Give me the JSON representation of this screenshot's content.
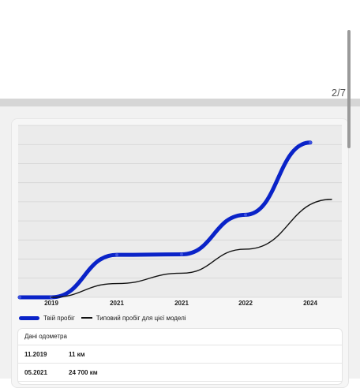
{
  "pager": {
    "text": "2/7"
  },
  "chart_data": {
    "type": "line",
    "x_tick_labels": [
      "2019",
      "2021",
      "2021",
      "2022",
      "2024"
    ],
    "series": [
      {
        "name": "Твій пробіг",
        "color": "#0a23c8",
        "points": [
          {
            "x": "2018",
            "y": 11
          },
          {
            "x": "11.2019",
            "y": 11
          },
          {
            "x": "05.2021",
            "y": 24700
          },
          {
            "x": "2021",
            "y": 25000
          },
          {
            "x": "2022",
            "y": 48000
          },
          {
            "x": "2024",
            "y": 90000
          }
        ]
      },
      {
        "name": "Типовий пробіг для цієї моделі",
        "color": "#111111",
        "points": [
          {
            "x": "11.2019",
            "y": 0
          },
          {
            "x": "2021",
            "y": 8000
          },
          {
            "x": "2021",
            "y": 14000
          },
          {
            "x": "2022",
            "y": 28000
          },
          {
            "x": "2024",
            "y": 57000
          }
        ]
      }
    ],
    "grid": true,
    "legend_placement": "bottom-left"
  },
  "legend": {
    "user_label": "Твій пробіг",
    "typical_label": "Типовий пробіг для цієї моделі"
  },
  "odometer": {
    "title": "Дані одометра",
    "rows": [
      {
        "date": "11.2019",
        "value": "11 км"
      },
      {
        "date": "05.2021",
        "value": "24 700 км"
      }
    ]
  }
}
